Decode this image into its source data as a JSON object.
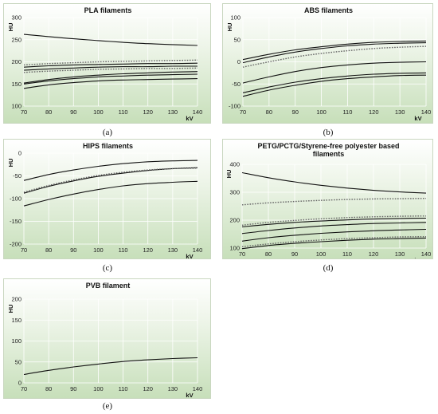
{
  "captions": [
    "(a)",
    "(b)",
    "(c)",
    "(d)",
    "(e)"
  ],
  "chart_data": [
    {
      "type": "line",
      "title": "PLA filaments",
      "xlabel": "kV",
      "ylabel": "HU",
      "xlim": [
        70,
        140
      ],
      "ylim": [
        100,
        300
      ],
      "xticks": [
        70,
        80,
        90,
        100,
        110,
        120,
        130,
        140
      ],
      "yticks": [
        100,
        150,
        200,
        250,
        300
      ],
      "x": [
        70,
        80,
        90,
        100,
        110,
        120,
        130,
        140
      ],
      "series": [
        {
          "style": "solid",
          "values": [
            262,
            257,
            252,
            248,
            244,
            241,
            239,
            237
          ]
        },
        {
          "style": "dotted",
          "values": [
            193,
            196,
            198,
            200,
            201,
            202,
            203,
            204
          ]
        },
        {
          "style": "solid",
          "values": [
            188,
            191,
            193,
            194,
            195,
            196,
            196,
            197
          ]
        },
        {
          "style": "solid",
          "values": [
            181,
            184,
            186,
            188,
            189,
            189,
            190,
            190
          ]
        },
        {
          "style": "dotted",
          "values": [
            176,
            179,
            181,
            183,
            184,
            185,
            185,
            186
          ]
        },
        {
          "style": "solid",
          "values": [
            152,
            160,
            166,
            170,
            173,
            175,
            177,
            178
          ]
        },
        {
          "style": "solid",
          "values": [
            150,
            157,
            162,
            166,
            168,
            170,
            171,
            172
          ]
        },
        {
          "style": "solid",
          "values": [
            140,
            148,
            153,
            157,
            159,
            160,
            161,
            162
          ]
        }
      ]
    },
    {
      "type": "line",
      "title": "ABS filaments",
      "xlabel": "kV",
      "ylabel": "HU",
      "xlim": [
        70,
        140
      ],
      "ylim": [
        -100,
        100
      ],
      "xticks": [
        70,
        80,
        90,
        100,
        110,
        120,
        130,
        140
      ],
      "yticks": [
        -100,
        -50,
        0,
        50,
        100
      ],
      "x": [
        70,
        80,
        90,
        100,
        110,
        120,
        130,
        140
      ],
      "series": [
        {
          "style": "solid",
          "values": [
            5,
            17,
            27,
            34,
            40,
            44,
            46,
            47
          ]
        },
        {
          "style": "solid",
          "values": [
            -2,
            11,
            22,
            30,
            36,
            40,
            42,
            43
          ]
        },
        {
          "style": "dotted",
          "values": [
            -12,
            0,
            11,
            19,
            25,
            30,
            33,
            35
          ]
        },
        {
          "style": "solid",
          "values": [
            -48,
            -34,
            -22,
            -13,
            -7,
            -3,
            -1,
            0
          ]
        },
        {
          "style": "solid",
          "values": [
            -70,
            -57,
            -46,
            -38,
            -32,
            -28,
            -26,
            -25
          ]
        },
        {
          "style": "solid",
          "values": [
            -78,
            -64,
            -53,
            -44,
            -38,
            -34,
            -31,
            -30
          ]
        }
      ]
    },
    {
      "type": "line",
      "title": "HIPS filaments",
      "xlabel": "kV",
      "ylabel": "HU",
      "xlim": [
        70,
        140
      ],
      "ylim": [
        -200,
        0
      ],
      "xticks": [
        70,
        80,
        90,
        100,
        110,
        120,
        130,
        140
      ],
      "yticks": [
        -200,
        -150,
        -100,
        -50,
        0
      ],
      "x": [
        70,
        80,
        90,
        100,
        110,
        120,
        130,
        140
      ],
      "series": [
        {
          "style": "solid",
          "values": [
            -60,
            -47,
            -37,
            -29,
            -23,
            -19,
            -17,
            -16
          ]
        },
        {
          "style": "solid",
          "values": [
            -88,
            -73,
            -61,
            -51,
            -44,
            -38,
            -34,
            -32
          ]
        },
        {
          "style": "dotted",
          "values": [
            -86,
            -71,
            -59,
            -49,
            -42,
            -37,
            -34,
            -33
          ]
        },
        {
          "style": "solid",
          "values": [
            -116,
            -102,
            -90,
            -80,
            -72,
            -67,
            -64,
            -62
          ]
        }
      ]
    },
    {
      "type": "line",
      "title": "PETG/PCTG/Styrene-free polyester based filaments",
      "title_lines": [
        "PETG/PCTG/Styrene-free polyester based",
        "filaments"
      ],
      "xlabel": "kV",
      "ylabel": "HU",
      "xlim": [
        70,
        140
      ],
      "ylim": [
        100,
        400
      ],
      "xticks": [
        70,
        80,
        90,
        100,
        110,
        120,
        130,
        140
      ],
      "yticks": [
        100,
        200,
        300,
        400
      ],
      "x": [
        70,
        80,
        90,
        100,
        110,
        120,
        130,
        140
      ],
      "series": [
        {
          "style": "solid",
          "values": [
            370,
            352,
            337,
            325,
            315,
            307,
            301,
            297
          ]
        },
        {
          "style": "dotted",
          "values": [
            255,
            262,
            267,
            271,
            274,
            276,
            277,
            278
          ]
        },
        {
          "style": "dotted",
          "values": [
            182,
            192,
            199,
            205,
            209,
            212,
            214,
            215
          ]
        },
        {
          "style": "solid",
          "values": [
            176,
            185,
            192,
            197,
            201,
            204,
            206,
            207
          ]
        },
        {
          "style": "solid",
          "values": [
            152,
            163,
            172,
            179,
            184,
            188,
            190,
            192
          ]
        },
        {
          "style": "solid",
          "values": [
            125,
            137,
            146,
            153,
            158,
            162,
            165,
            167
          ]
        },
        {
          "style": "dotted",
          "values": [
            105,
            115,
            123,
            129,
            134,
            137,
            140,
            141
          ]
        },
        {
          "style": "solid",
          "values": [
            98,
            109,
            117,
            123,
            128,
            132,
            134,
            136
          ]
        }
      ]
    },
    {
      "type": "line",
      "title": "PVB filament",
      "xlabel": "kV",
      "ylabel": "HU",
      "xlim": [
        70,
        140
      ],
      "ylim": [
        0,
        200
      ],
      "xticks": [
        70,
        80,
        90,
        100,
        110,
        120,
        130,
        140
      ],
      "yticks": [
        0,
        50,
        100,
        150,
        200
      ],
      "x": [
        70,
        80,
        90,
        100,
        110,
        120,
        130,
        140
      ],
      "series": [
        {
          "style": "solid",
          "values": [
            20,
            30,
            38,
            45,
            51,
            55,
            58,
            60
          ]
        }
      ]
    }
  ]
}
